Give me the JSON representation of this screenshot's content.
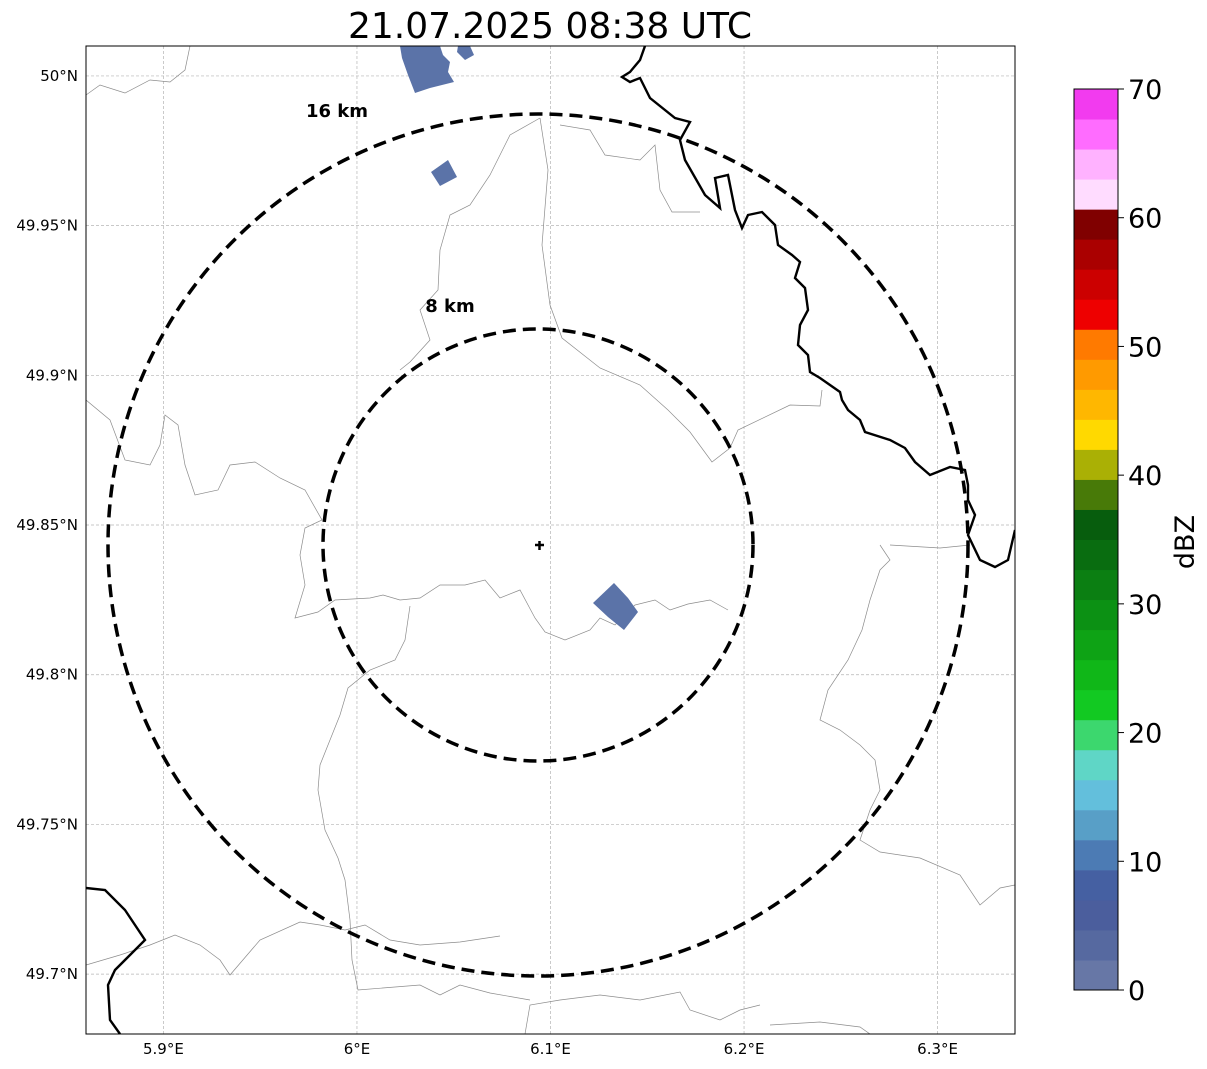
{
  "title": "21.07.2025 08:38 UTC",
  "map": {
    "extent": {
      "lon": [
        5.86,
        6.34
      ],
      "lat": [
        49.68,
        50.01
      ]
    },
    "radar_site": {
      "lon": 6.095,
      "lat": 49.843
    },
    "range_rings": [
      {
        "label": "8 km",
        "radius_km": 8
      },
      {
        "label": "16 km",
        "radius_km": 16
      }
    ],
    "x_ticks": [
      {
        "value": 5.9,
        "label": "5.9°E"
      },
      {
        "value": 6.0,
        "label": "6°E"
      },
      {
        "value": 6.1,
        "label": "6.1°E"
      },
      {
        "value": 6.2,
        "label": "6.2°E"
      },
      {
        "value": 6.3,
        "label": "6.3°E"
      }
    ],
    "y_ticks": [
      {
        "value": 50.0,
        "label": "50°N"
      },
      {
        "value": 49.95,
        "label": "49.95°N"
      },
      {
        "value": 49.9,
        "label": "49.9°N"
      },
      {
        "value": 49.85,
        "label": "49.85°N"
      },
      {
        "value": 49.8,
        "label": "49.8°N"
      },
      {
        "value": 49.75,
        "label": "49.75°N"
      },
      {
        "value": 49.7,
        "label": "49.7°N"
      }
    ],
    "gridlines": true,
    "echo_color": "#5b73a8"
  },
  "colorbar": {
    "label": "dBZ",
    "min": 0,
    "max": 70,
    "step": 2.5,
    "tick_values": [
      0,
      10,
      20,
      30,
      40,
      50,
      60,
      70
    ],
    "tick_labels": [
      "0",
      "10",
      "20",
      "30",
      "40",
      "50",
      "60",
      "70"
    ],
    "colors": [
      "#6777a6",
      "#5669a0",
      "#4b5e9d",
      "#4560a2",
      "#4c7bb4",
      "#589fc7",
      "#63bfdc",
      "#5fd6c6",
      "#3cd76e",
      "#12c922",
      "#10b718",
      "#0ea315",
      "#0c9114",
      "#0b7f12",
      "#096d10",
      "#075d0d",
      "#487a08",
      "#aab005",
      "#ffd900",
      "#ffb700",
      "#ff9a00",
      "#ff7a00",
      "#ee0000",
      "#cc0000",
      "#aa0000",
      "#800000",
      "#ffdcff",
      "#ffb2ff",
      "#ff6cff",
      "#f23bef"
    ]
  }
}
